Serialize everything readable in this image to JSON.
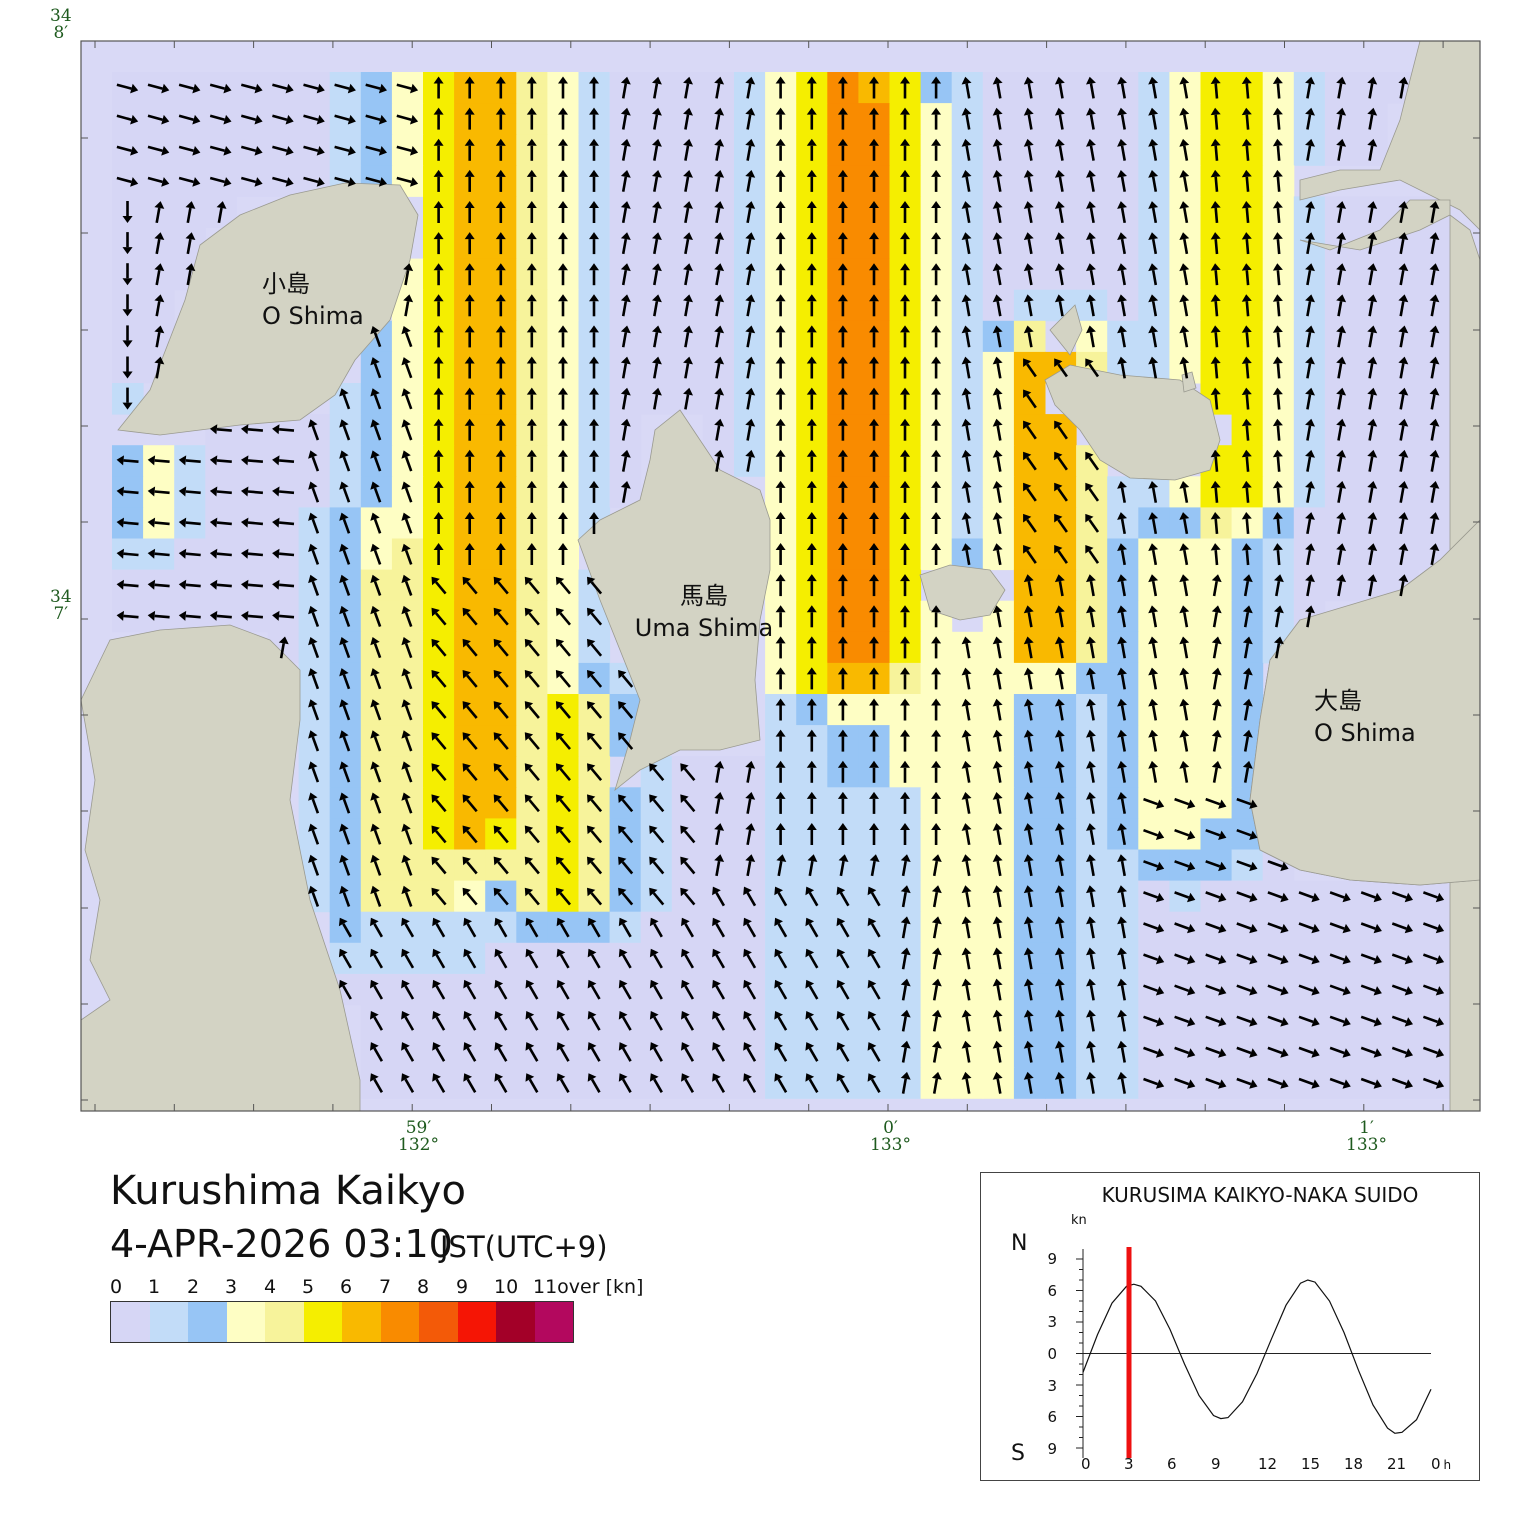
{
  "map": {
    "title": "Kurushima Kaikyo",
    "datetime": "4-APR-2026 03:10",
    "timezone": "JST(UTC+9)",
    "lat_labels": [
      {
        "deg": "34",
        "min": "8′"
      },
      {
        "deg": "34",
        "min": "7′"
      }
    ],
    "lon_labels": [
      {
        "min": "59′",
        "deg": "132°"
      },
      {
        "min": "0′",
        "deg": "133°"
      },
      {
        "min": "1′",
        "deg": "133°"
      }
    ],
    "places": [
      {
        "jp": "小島",
        "en": "O Shima"
      },
      {
        "jp": "馬島",
        "en": "Uma Shima"
      },
      {
        "jp": "大島",
        "en": "O Shima"
      }
    ],
    "colors": {
      "land": "#d3d3c4",
      "water": "#d9d9f6",
      "frame": "#555555",
      "arrow": "#000000"
    }
  },
  "legend": {
    "labels": [
      "0",
      "1",
      "2",
      "3",
      "4",
      "5",
      "6",
      "7",
      "8",
      "9",
      "10",
      "11over [kn]"
    ],
    "colors": [
      "#d6d6f5",
      "#c2dcf8",
      "#97c5f5",
      "#fefec4",
      "#f7f39b",
      "#f5ee00",
      "#f9b900",
      "#f98b00",
      "#f35a08",
      "#f51505",
      "#a30028",
      "#b3085e"
    ]
  },
  "tide_chart": {
    "title": "KURUSIMA KAIKYO-NAKA SUIDO",
    "unit": "kn",
    "north_label": "N",
    "south_label": "S",
    "y_ticks": [
      "9",
      "6",
      "3",
      "0",
      "3",
      "6",
      "9"
    ],
    "x_ticks": [
      "0",
      "3",
      "6",
      "9",
      "12",
      "15",
      "18",
      "21",
      "0"
    ],
    "x_unit": "h",
    "current_time_h": 3.17,
    "marker_color": "#ee1111"
  },
  "chart_data": {
    "type": "line",
    "title": "KURUSIMA KAIKYO-NAKA SUIDO",
    "xlabel": "h",
    "ylabel": "kn",
    "ylim": [
      -9,
      9
    ],
    "xlim": [
      0,
      24
    ],
    "series": [
      {
        "x": [
          0,
          1,
          2,
          3,
          3.5,
          4,
          5,
          6,
          7,
          8,
          9,
          9.5,
          10,
          11,
          12,
          13,
          14,
          15,
          15.5,
          16,
          17,
          18,
          19,
          20,
          21,
          21.5,
          22,
          23,
          24
        ],
        "values": [
          -1.8,
          1.8,
          4.8,
          6.4,
          6.6,
          6.4,
          5.0,
          2.3,
          -1.0,
          -4.0,
          -5.9,
          -6.2,
          -6.1,
          -4.6,
          -1.9,
          1.4,
          4.6,
          6.7,
          7.0,
          6.8,
          5.0,
          2.0,
          -1.6,
          -4.9,
          -7.1,
          -7.6,
          -7.5,
          -6.3,
          -3.4
        ]
      }
    ]
  }
}
